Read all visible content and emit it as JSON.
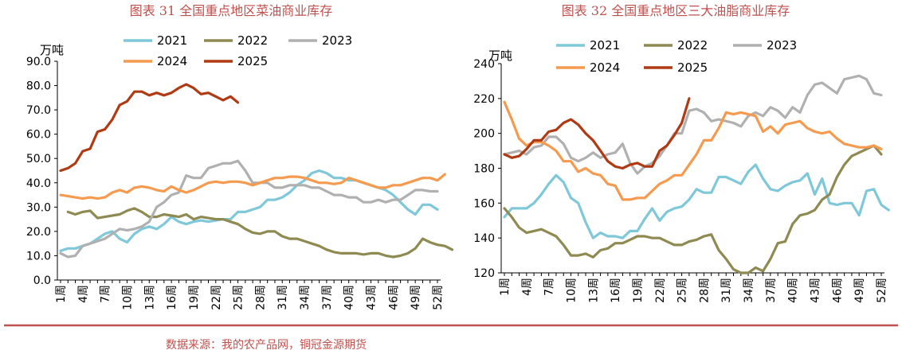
{
  "footer": {
    "source": "数据来源：我的农产品网，铜冠金源期货"
  },
  "colors": {
    "title": "#C0504D",
    "rule": "#C0504D",
    "s2021": "#7EC8DA",
    "s2022": "#8E8A52",
    "s2023": "#B0B0B0",
    "s2024": "#F59A4E",
    "s2025": "#B03A14"
  },
  "chart_data": [
    {
      "type": "line",
      "title": "图表 31  全国重点地区菜油商业库存",
      "ylabel": "万吨",
      "ylim": [
        0,
        90
      ],
      "y_ticks": [
        "0.0",
        "10.0",
        "20.0",
        "30.0",
        "40.0",
        "50.0",
        "60.0",
        "70.0",
        "80.0",
        "90.0"
      ],
      "x_ticks": [
        "1周",
        "4周",
        "7周",
        "10周",
        "13周",
        "16周",
        "19周",
        "22周",
        "25周",
        "28周",
        "31周",
        "34周",
        "37周",
        "40周",
        "43周",
        "46周",
        "49周",
        "52周"
      ],
      "x_week_range": [
        1,
        52
      ],
      "legend": "top",
      "grid": false,
      "series": [
        {
          "name": "2021",
          "color_key": "s2021",
          "weeks_start": 1,
          "values": [
            12,
            13,
            13,
            14,
            15,
            17,
            19,
            20,
            17,
            15.5,
            19,
            21,
            22,
            21,
            23,
            26,
            24,
            23,
            24,
            24.5,
            24,
            24.5,
            25,
            25,
            28,
            28,
            29,
            30,
            33,
            33,
            34,
            36,
            39,
            41,
            44,
            45,
            44,
            42,
            42,
            41,
            41,
            40,
            39,
            38,
            37,
            35,
            32,
            29,
            27,
            31,
            31,
            29
          ]
        },
        {
          "name": "2022",
          "color_key": "s2022",
          "weeks_start": 2,
          "values": [
            28,
            27,
            28,
            28.5,
            25.5,
            26,
            26.5,
            27,
            28.5,
            29.5,
            28,
            26,
            26,
            27,
            26.5,
            26,
            27,
            25,
            26,
            25.5,
            25,
            25,
            24,
            23,
            21,
            19.5,
            19,
            20,
            20,
            18,
            17,
            17,
            16,
            15,
            14,
            12.5,
            11.5,
            11,
            11,
            11,
            10.5,
            11,
            11,
            10,
            9.5,
            10,
            11,
            13,
            17,
            15.5,
            14.5,
            14,
            12.5
          ]
        },
        {
          "name": "2023",
          "color_key": "s2023",
          "weeks_start": 1,
          "values": [
            11,
            9.5,
            10,
            14,
            15,
            16,
            17,
            19,
            21,
            20.5,
            21,
            22,
            24,
            30,
            32,
            35,
            36,
            43,
            42,
            42,
            46,
            47,
            48,
            48,
            49,
            45,
            40,
            40,
            40,
            38,
            38,
            39,
            39,
            39,
            38,
            38,
            36.5,
            35,
            35,
            34,
            34,
            32,
            32,
            33,
            32,
            33,
            33,
            35,
            37,
            37,
            36.5,
            36.5
          ]
        },
        {
          "name": "2024",
          "color_key": "s2024",
          "weeks_start": 1,
          "values": [
            35,
            34.5,
            34,
            33.5,
            34,
            33.5,
            34,
            36,
            37,
            36,
            38,
            38.5,
            38,
            37,
            36.5,
            38.5,
            37,
            36,
            37,
            38.5,
            40,
            40.5,
            40,
            40.5,
            40.5,
            40,
            39,
            40,
            41,
            42,
            42,
            42.5,
            42.5,
            42,
            41,
            40,
            40,
            39.5,
            40,
            42,
            41,
            40,
            39,
            38,
            38,
            39,
            39,
            40,
            41,
            42,
            42,
            41,
            43.5
          ]
        },
        {
          "name": "2025",
          "color_key": "s2025",
          "weeks_start": 1,
          "values": [
            45,
            46,
            48,
            53,
            54,
            61,
            62,
            66,
            72,
            73.5,
            77.5,
            77.5,
            76,
            77,
            76,
            77,
            79,
            80.5,
            79,
            76.5,
            77,
            75.5,
            74,
            75.5,
            73
          ]
        }
      ]
    },
    {
      "type": "line",
      "title": "图表 32  全国重点地区三大油脂商业库存",
      "ylabel": "万吨",
      "ylim": [
        120,
        240
      ],
      "y_ticks": [
        "120",
        "140",
        "160",
        "180",
        "200",
        "220",
        "240"
      ],
      "x_ticks": [
        "1周",
        "4周",
        "7周",
        "10周",
        "13周",
        "16周",
        "19周",
        "22周",
        "25周",
        "28周",
        "31周",
        "34周",
        "37周",
        "40周",
        "43周",
        "46周",
        "49周",
        "52周"
      ],
      "x_week_range": [
        1,
        52
      ],
      "legend": "top",
      "grid": false,
      "series": [
        {
          "name": "2021",
          "color_key": "s2021",
          "weeks_start": 1,
          "values": [
            152,
            157,
            157,
            157,
            160,
            165,
            171,
            176,
            172,
            163,
            160,
            149,
            140,
            143,
            141,
            141,
            140,
            144,
            144,
            151,
            157,
            150,
            155,
            157,
            158,
            162,
            168,
            166,
            166,
            175,
            175,
            173,
            171,
            178,
            182,
            174,
            168,
            167,
            170,
            172,
            173,
            177,
            165,
            174,
            160,
            159,
            160,
            160,
            153,
            167,
            168,
            159,
            156
          ]
        },
        {
          "name": "2022",
          "color_key": "s2022",
          "weeks_start": 1,
          "values": [
            157,
            152,
            146,
            143,
            144,
            145,
            143,
            141,
            136,
            130,
            130,
            131,
            129,
            133,
            134,
            137,
            137,
            139,
            141,
            141,
            140,
            140,
            138,
            136,
            136,
            138,
            139,
            141,
            142,
            133,
            128,
            122,
            120,
            120,
            123,
            121,
            128,
            137,
            138,
            148,
            153,
            154,
            156,
            162,
            165,
            175,
            182,
            187,
            189,
            191,
            193,
            188
          ]
        },
        {
          "name": "2023",
          "color_key": "s2023",
          "weeks_start": 1,
          "values": [
            188,
            189,
            190,
            188,
            192,
            193,
            198,
            198,
            194,
            186,
            184,
            186,
            189,
            186,
            188,
            189,
            194,
            183,
            177,
            181,
            183,
            187,
            193,
            200,
            200,
            213,
            214,
            212,
            207,
            208,
            207,
            206,
            204,
            210,
            212,
            210,
            215,
            213,
            209,
            215,
            212,
            222,
            228,
            229,
            226,
            223,
            231,
            232,
            233,
            231,
            223,
            222
          ]
        },
        {
          "name": "2024",
          "color_key": "s2024",
          "weeks_start": 1,
          "values": [
            218,
            208,
            197,
            193,
            195,
            195,
            193,
            190,
            184,
            184,
            178,
            180,
            177,
            176,
            171,
            170,
            162,
            162,
            163,
            163,
            167,
            171,
            173,
            176,
            176,
            182,
            188,
            196,
            196,
            203,
            212,
            211,
            212,
            211,
            210,
            201,
            204,
            200,
            205,
            206,
            207,
            203,
            201,
            200,
            201,
            197,
            194,
            193,
            192,
            192,
            193,
            191
          ]
        },
        {
          "name": "2025",
          "color_key": "s2025",
          "weeks_start": 1,
          "values": [
            188,
            186,
            187,
            191,
            196,
            196,
            201,
            202,
            206,
            208,
            205,
            200,
            196,
            190,
            184,
            181,
            180,
            182,
            183,
            181,
            181,
            190,
            193,
            199,
            206,
            220
          ]
        }
      ]
    }
  ]
}
